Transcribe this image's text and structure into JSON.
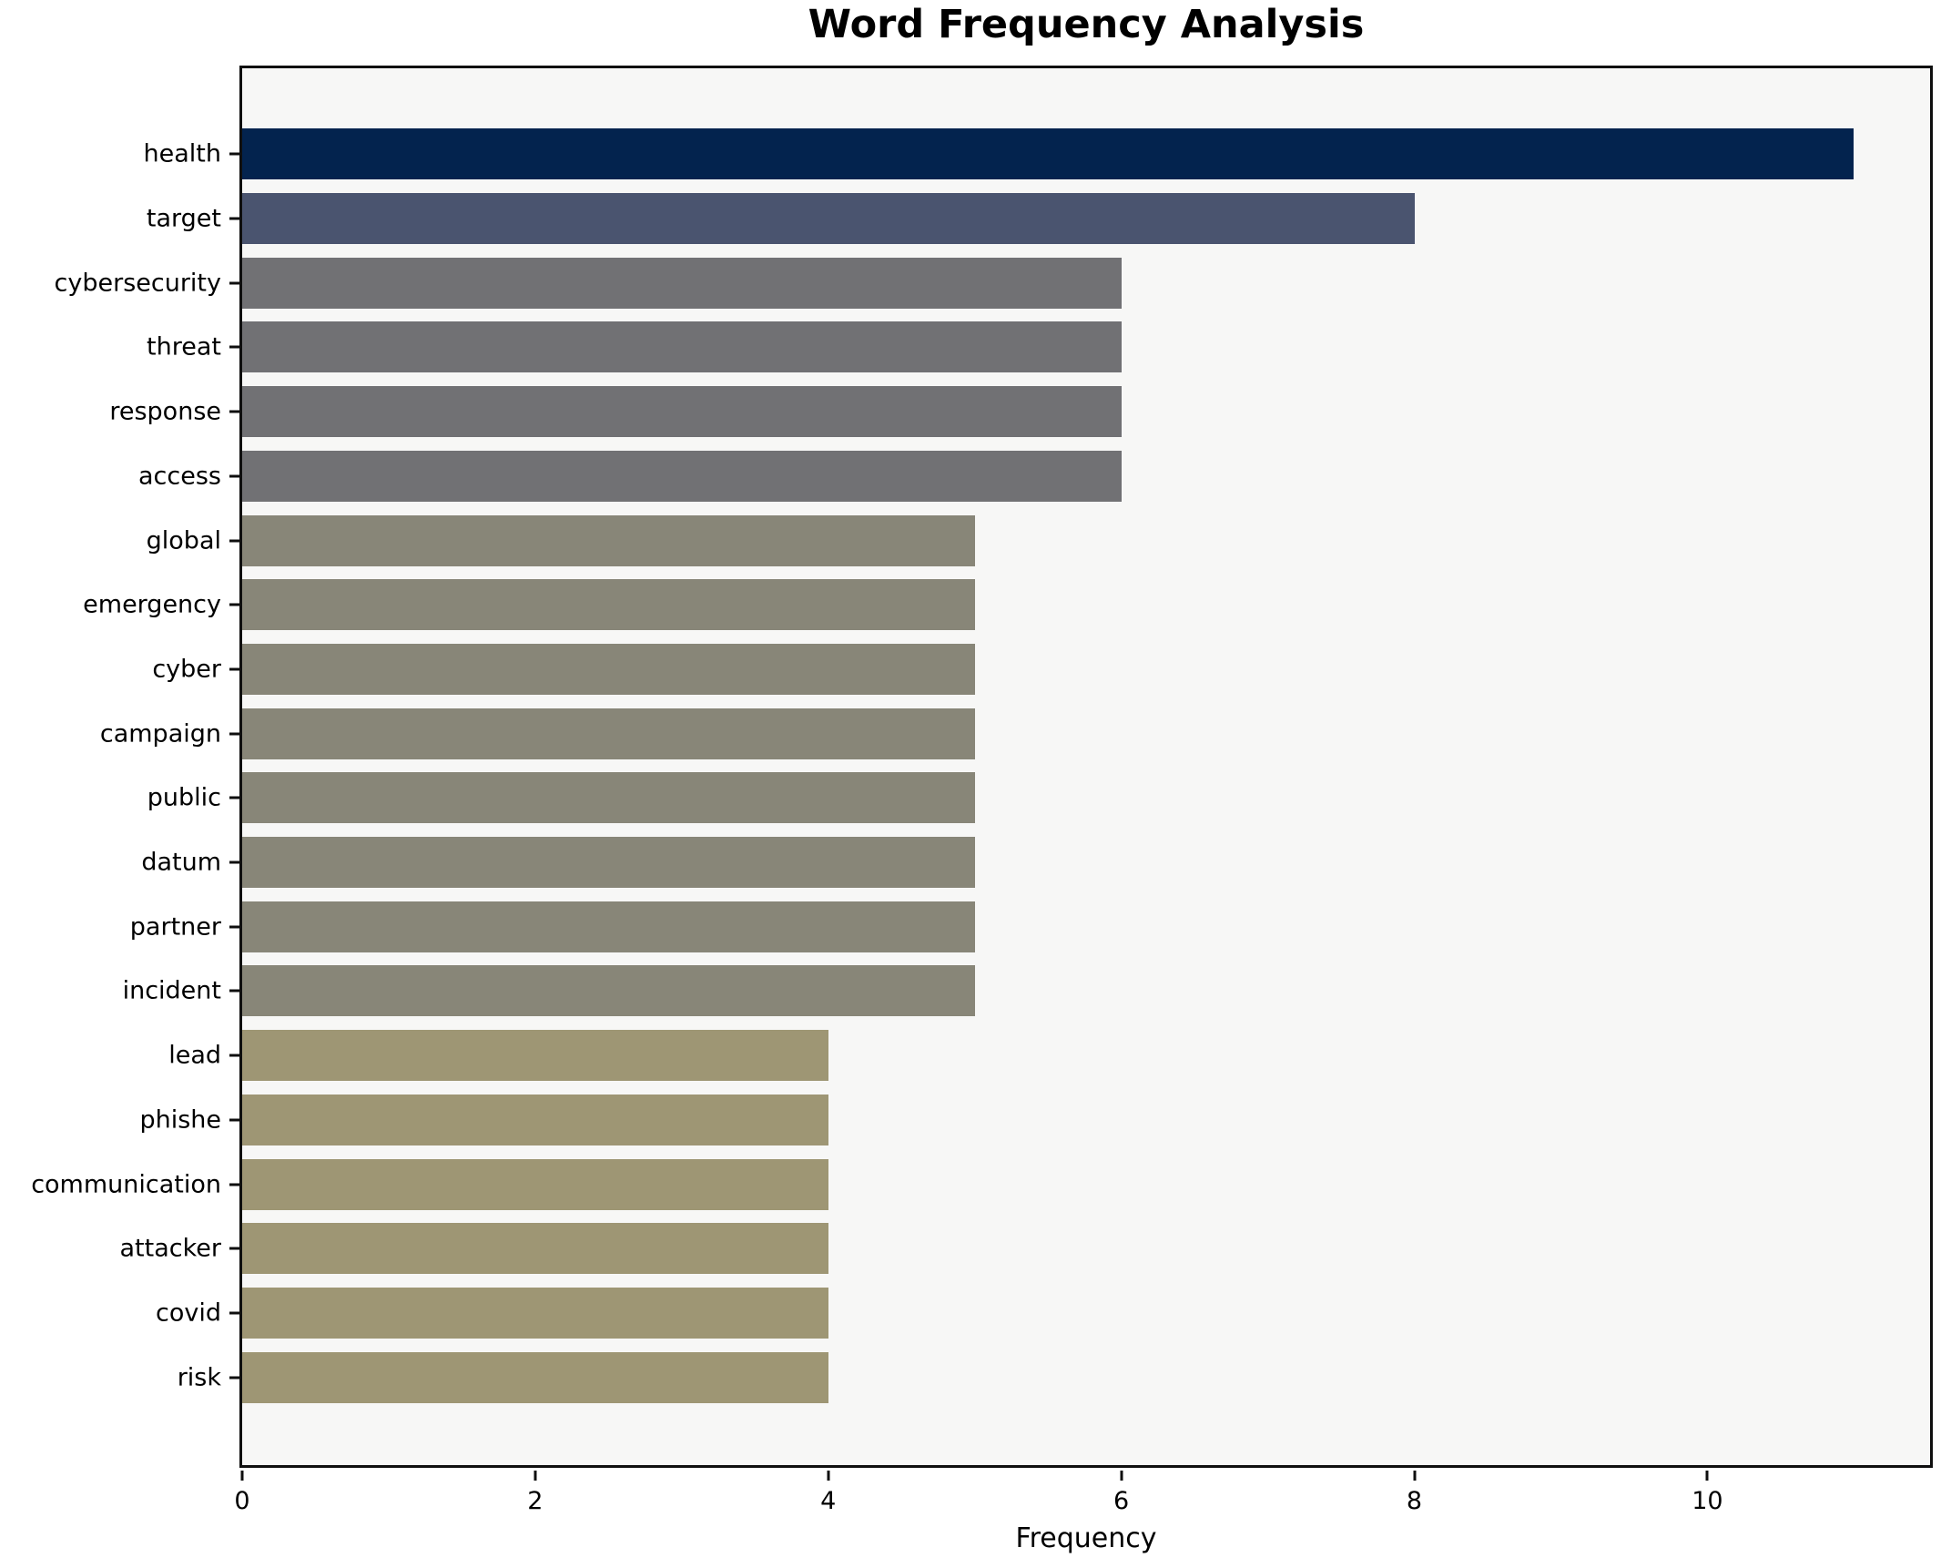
{
  "title": "Word Frequency Analysis",
  "chart_data": {
    "type": "bar",
    "orientation": "horizontal",
    "title": "Word Frequency Analysis",
    "xlabel": "Frequency",
    "ylabel": "",
    "grid": false,
    "legend": null,
    "plot_background": "#f7f7f6",
    "figure_background": "#ffffff",
    "xlim": [
      0,
      11.52
    ],
    "xticks": [
      0,
      2,
      4,
      6,
      8,
      10
    ],
    "categories": [
      "health",
      "target",
      "cybersecurity",
      "threat",
      "response",
      "access",
      "global",
      "emergency",
      "cyber",
      "campaign",
      "public",
      "datum",
      "partner",
      "incident",
      "lead",
      "phishe",
      "communication",
      "attacker",
      "covid",
      "risk"
    ],
    "values": [
      11,
      8,
      6,
      6,
      6,
      6,
      5,
      5,
      5,
      5,
      5,
      5,
      5,
      5,
      4,
      4,
      4,
      4,
      4,
      4
    ],
    "bar_colors": [
      "#03234e",
      "#4a546f",
      "#717174",
      "#717174",
      "#717174",
      "#717174",
      "#888678",
      "#888678",
      "#888678",
      "#888678",
      "#888678",
      "#888678",
      "#888678",
      "#888678",
      "#9e9674",
      "#9e9674",
      "#9e9674",
      "#9e9674",
      "#9e9674",
      "#9e9674"
    ]
  }
}
